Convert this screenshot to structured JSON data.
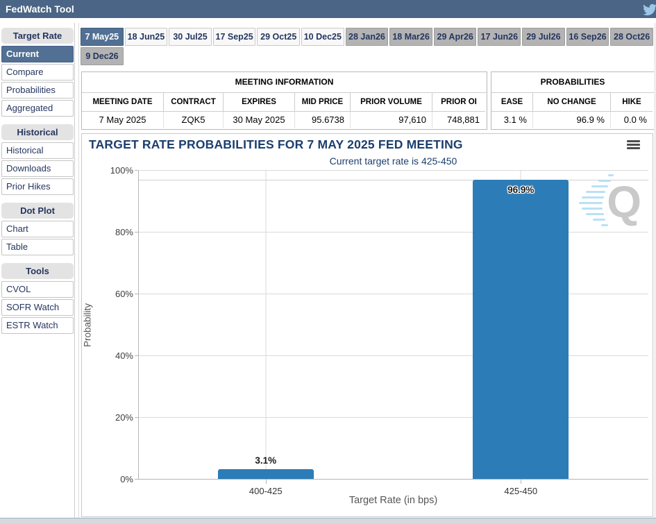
{
  "header": {
    "title": "FedWatch Tool",
    "twitter_icon": "twitter-bird"
  },
  "sidebar": {
    "sections": [
      {
        "header": "Target Rate",
        "items": [
          {
            "label": "Current",
            "selected": true
          },
          {
            "label": "Compare"
          },
          {
            "label": "Probabilities"
          },
          {
            "label": "Aggregated"
          }
        ]
      },
      {
        "header": "Historical",
        "items": [
          {
            "label": "Historical"
          },
          {
            "label": "Downloads"
          },
          {
            "label": "Prior Hikes"
          }
        ]
      },
      {
        "header": "Dot Plot",
        "items": [
          {
            "label": "Chart"
          },
          {
            "label": "Table"
          }
        ]
      },
      {
        "header": "Tools",
        "items": [
          {
            "label": "CVOL"
          },
          {
            "label": "SOFR Watch"
          },
          {
            "label": "ESTR Watch"
          }
        ]
      }
    ]
  },
  "tabs": {
    "row1": [
      {
        "label": "7 May25",
        "state": "active"
      },
      {
        "label": "18 Jun25",
        "state": "default"
      },
      {
        "label": "30 Jul25",
        "state": "default"
      },
      {
        "label": "17 Sep25",
        "state": "default"
      },
      {
        "label": "29 Oct25",
        "state": "default"
      },
      {
        "label": "10 Dec25",
        "state": "default"
      },
      {
        "label": "28 Jan26",
        "state": "gray"
      },
      {
        "label": "18 Mar26",
        "state": "gray"
      },
      {
        "label": "29 Apr26",
        "state": "gray"
      },
      {
        "label": "17 Jun26",
        "state": "gray"
      },
      {
        "label": "29 Jul26",
        "state": "gray"
      },
      {
        "label": "16 Sep26",
        "state": "gray"
      },
      {
        "label": "28 Oct26",
        "state": "gray"
      }
    ],
    "row2": [
      {
        "label": "9 Dec26",
        "state": "gray"
      }
    ]
  },
  "meeting_information": {
    "title": "MEETING INFORMATION",
    "columns": [
      "MEETING DATE",
      "CONTRACT",
      "EXPIRES",
      "MID PRICE",
      "PRIOR VOLUME",
      "PRIOR OI"
    ],
    "row": {
      "meeting_date": "7 May 2025",
      "contract": "ZQK5",
      "expires": "30 May 2025",
      "mid_price": "95.6738",
      "prior_volume": "97,610",
      "prior_oi": "748,881"
    }
  },
  "probabilities": {
    "title": "PROBABILITIES",
    "columns": [
      "EASE",
      "NO CHANGE",
      "HIKE"
    ],
    "row": {
      "ease": "3.1 %",
      "no_change": "96.9 %",
      "hike": "0.0 %"
    }
  },
  "chart_data": {
    "type": "bar",
    "title": "TARGET RATE PROBABILITIES FOR 7 MAY 2025 FED MEETING",
    "subtitle": "Current target rate is 425-450",
    "categories": [
      "400-425",
      "425-450"
    ],
    "values": [
      3.1,
      96.9
    ],
    "bar_labels": [
      "3.1%",
      "96.9%"
    ],
    "xlabel": "Target Rate (in bps)",
    "ylabel": "Probability",
    "ylim": [
      0,
      100
    ],
    "yticks": [
      "0%",
      "20%",
      "40%",
      "60%",
      "80%",
      "100%"
    ],
    "grid": "on",
    "legend": "none",
    "bar_color": "#2b7cb7",
    "watermark": "Q"
  },
  "colors": {
    "header_slate": "#4a6585",
    "selected_slate": "#527093",
    "navy_text": "#25355f",
    "bar_blue": "#2b7cb7",
    "tab_gray": "#b3b3b3",
    "twitter_blue": "#9cc7e9"
  }
}
